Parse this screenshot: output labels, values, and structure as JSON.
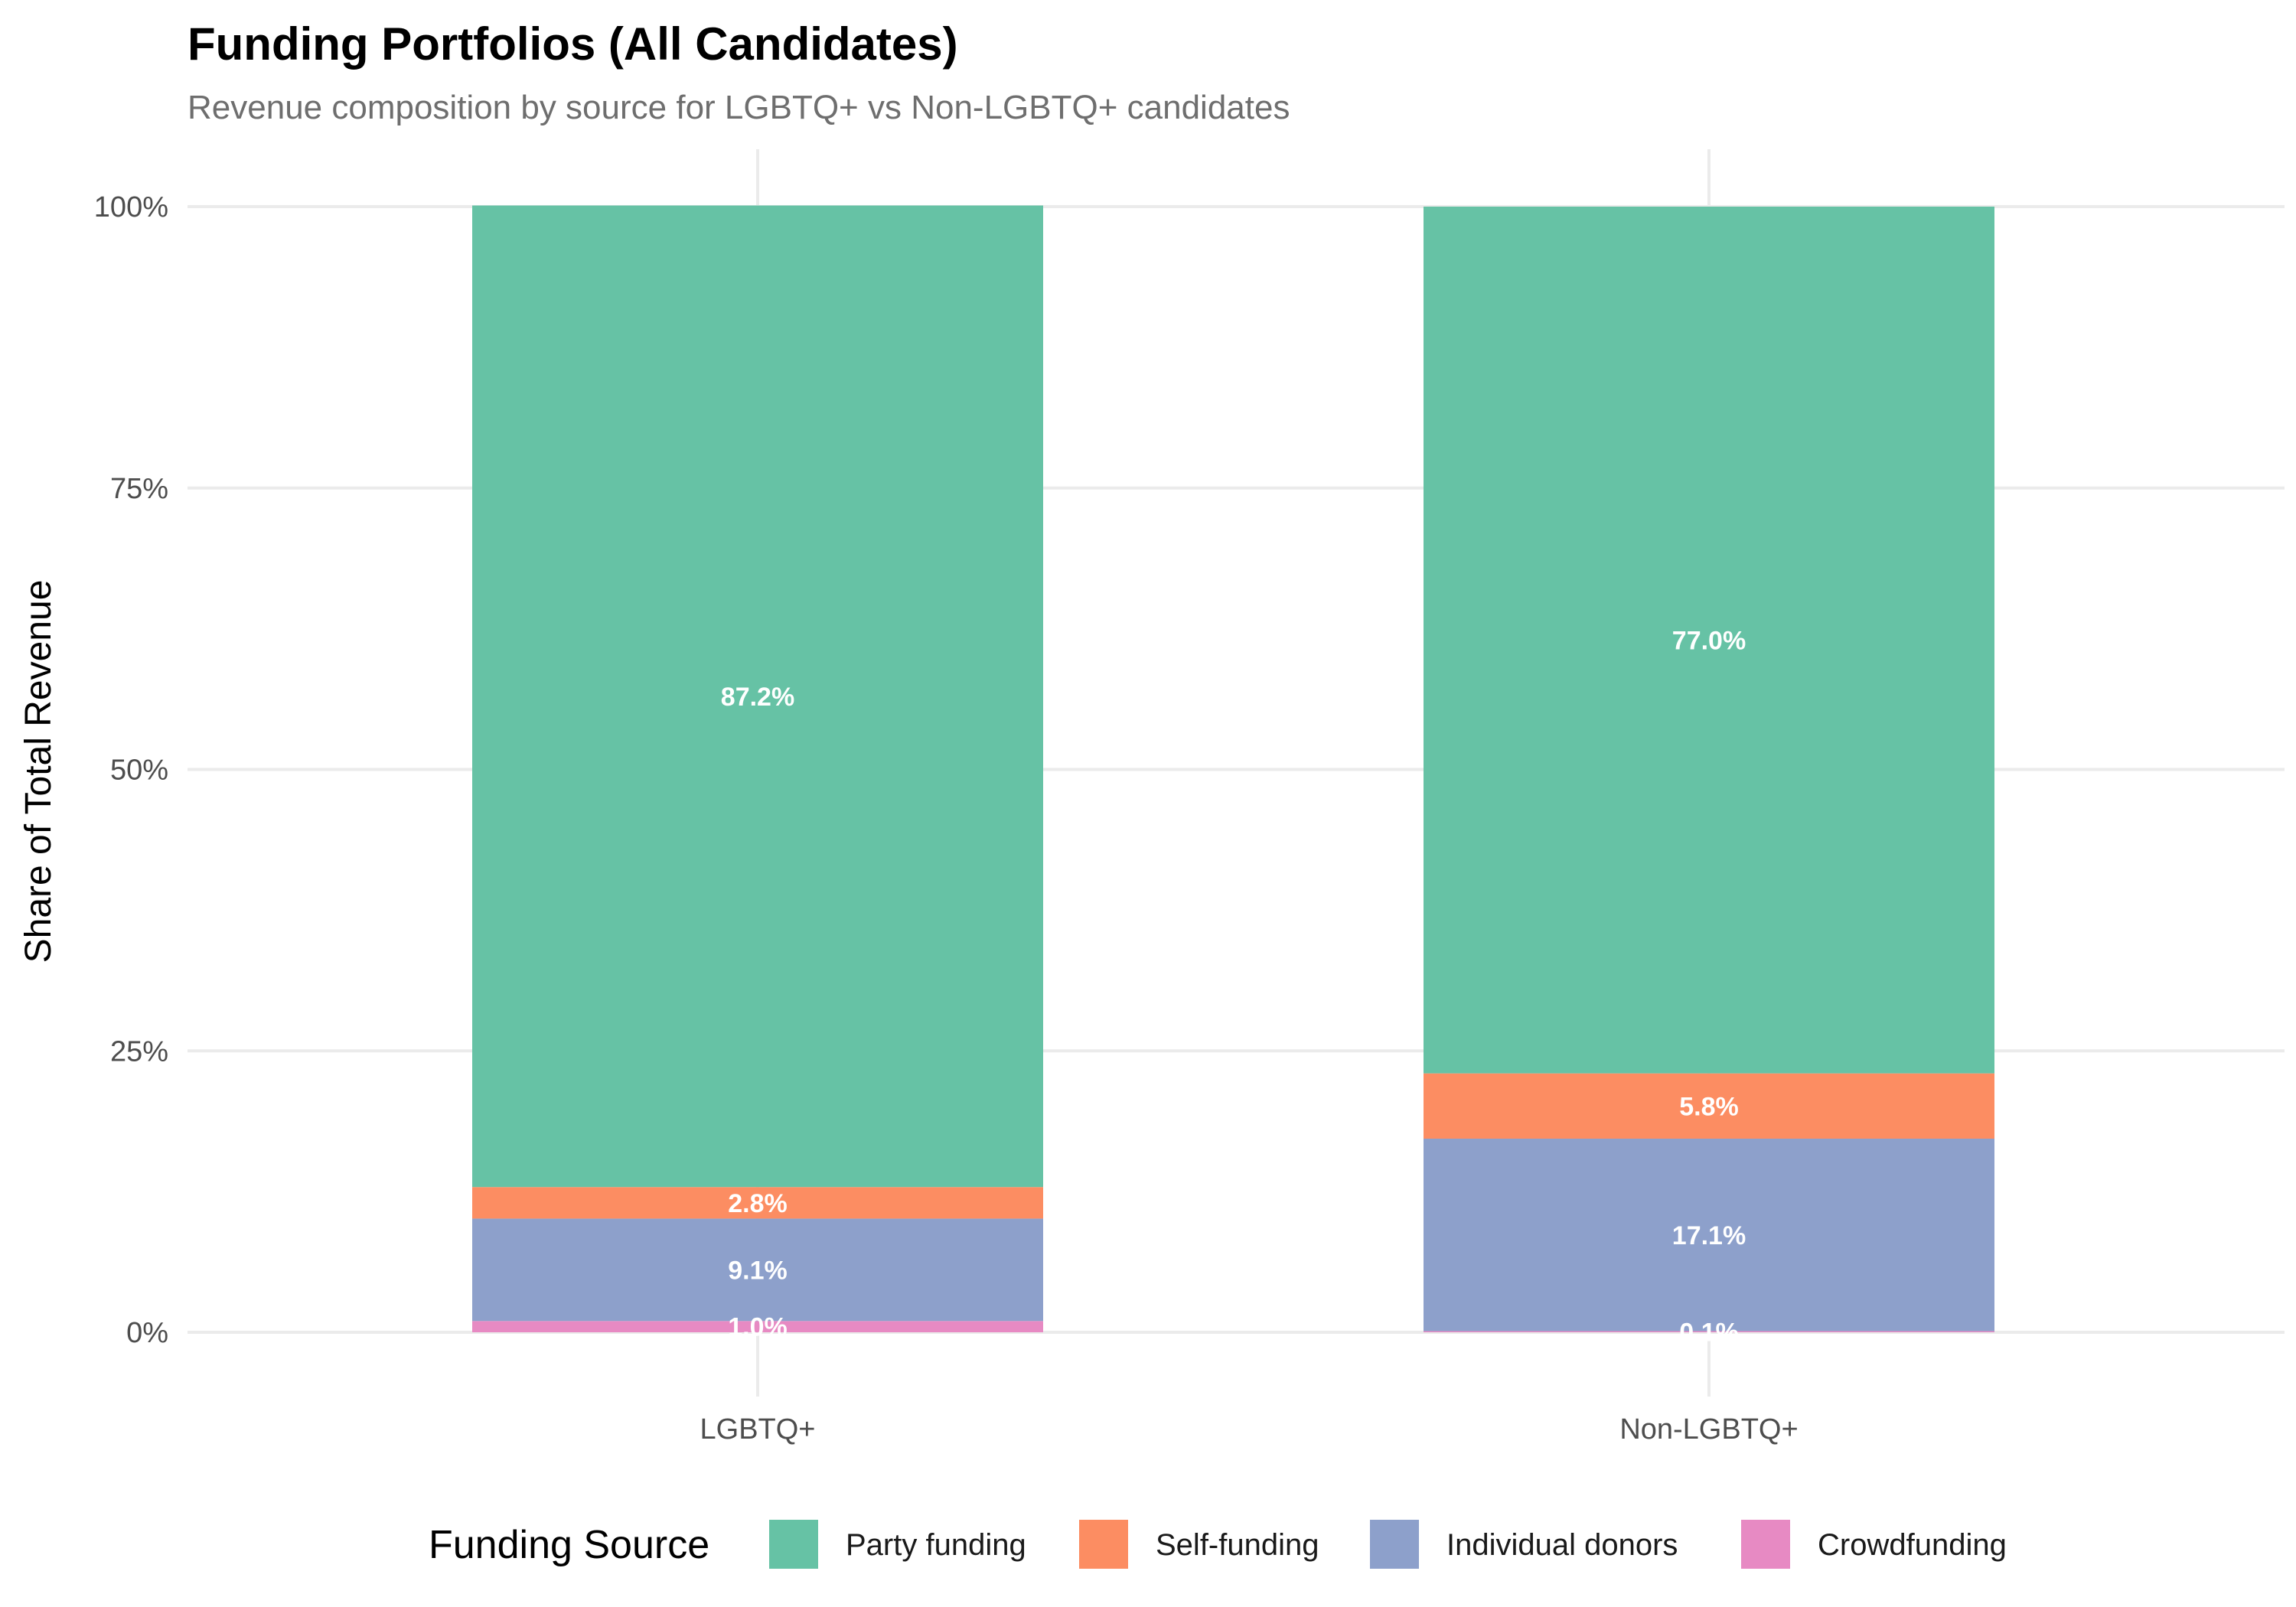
{
  "chart_data": {
    "type": "bar",
    "stacked": true,
    "title": "Funding Portfolios (All Candidates)",
    "subtitle": "Revenue composition by source for LGBTQ+ vs Non-LGBTQ+ candidates",
    "xlabel": "",
    "ylabel": "Share of Total Revenue",
    "ylim": [
      0,
      100
    ],
    "yticks": [
      0,
      25,
      50,
      75,
      100
    ],
    "ytick_labels": [
      "0%",
      "25%",
      "50%",
      "75%",
      "100%"
    ],
    "grid": true,
    "legend_title": "Funding Source",
    "legend_position": "bottom",
    "categories": [
      "LGBTQ+",
      "Non-LGBTQ+"
    ],
    "series": [
      {
        "name": "Party funding",
        "color": "#66c2a5",
        "values": [
          87.2,
          77.0
        ],
        "labels": [
          "87.2%",
          "77.0%"
        ]
      },
      {
        "name": "Self-funding",
        "color": "#fc8d62",
        "values": [
          2.8,
          5.8
        ],
        "labels": [
          "2.8%",
          "5.8%"
        ]
      },
      {
        "name": "Individual donors",
        "color": "#8da0cb",
        "values": [
          9.1,
          17.1
        ],
        "labels": [
          "9.1%",
          "17.1%"
        ]
      },
      {
        "name": "Crowdfunding",
        "color": "#e78ac3",
        "values": [
          1.0,
          0.1
        ],
        "labels": [
          "1.0%",
          "0.1%"
        ]
      }
    ]
  }
}
